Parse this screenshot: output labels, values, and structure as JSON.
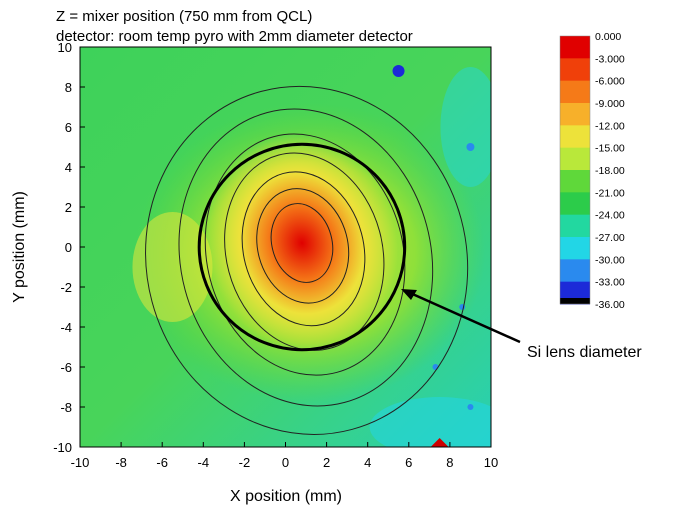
{
  "chart_data": {
    "type": "heatmap",
    "title_lines": [
      "Z = mixer position (750 mm from QCL)",
      "detector: room temp pyro with 2mm diameter detector"
    ],
    "xlabel": "X position (mm)",
    "ylabel": "Y position (mm)",
    "xlim": [
      -10,
      10
    ],
    "ylim": [
      -10,
      10
    ],
    "x_ticks": [
      "-10",
      "-8",
      "-6",
      "-4",
      "-2",
      "0",
      "2",
      "4",
      "6",
      "8",
      "10"
    ],
    "y_ticks": [
      "10",
      "8",
      "6",
      "4",
      "2",
      "0",
      "-2",
      "-4",
      "-6",
      "-8",
      "-10"
    ],
    "colorbar": {
      "labels": [
        "0.000",
        "-3.000",
        "-6.000",
        "-9.000",
        "-12.00",
        "-15.00",
        "-18.00",
        "-21.00",
        "-24.00",
        "-27.00",
        "-30.00",
        "-33.00",
        "-36.00"
      ],
      "values": [
        0,
        -3,
        -6,
        -9,
        -12,
        -15,
        -18,
        -21,
        -24,
        -27,
        -30,
        -33,
        -36
      ],
      "colors": [
        "#e00000",
        "#f0400a",
        "#f57a18",
        "#f7b02a",
        "#ede23a",
        "#b9e83a",
        "#5fd83a",
        "#2ccc4a",
        "#22d8a0",
        "#22d6e6",
        "#2a8aee",
        "#1c2ad8",
        "#000000"
      ]
    },
    "peak": {
      "x": 0.8,
      "y": 0.2,
      "value": 0.0
    },
    "circle": {
      "center_x": 0.8,
      "center_y": 0.0,
      "radius": 5.0
    },
    "annotation": "Si lens diameter"
  }
}
